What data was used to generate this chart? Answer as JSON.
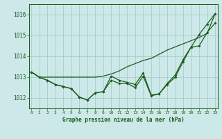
{
  "title": "Graphe pression niveau de la mer (hPa)",
  "background_color": "#cce8e8",
  "grid_color": "#aacccc",
  "line_color": "#1a5c1a",
  "x_ticks": [
    0,
    1,
    2,
    3,
    4,
    5,
    6,
    7,
    8,
    9,
    10,
    11,
    12,
    13,
    14,
    15,
    16,
    17,
    18,
    19,
    20,
    21,
    22,
    23
  ],
  "ylim": [
    1011.5,
    1016.5
  ],
  "yticks": [
    1012,
    1013,
    1014,
    1015,
    1016
  ],
  "line_top": [
    1013.25,
    1013.0,
    1013.0,
    1013.0,
    1013.0,
    1013.0,
    1013.0,
    1013.0,
    1013.0,
    1013.05,
    1013.15,
    1013.3,
    1013.5,
    1013.65,
    1013.8,
    1013.9,
    1014.1,
    1014.3,
    1014.45,
    1014.6,
    1014.75,
    1014.9,
    1015.1,
    1016.05
  ],
  "line_mid": [
    1013.25,
    1013.0,
    1012.85,
    1012.65,
    1012.55,
    1012.45,
    1012.05,
    1011.9,
    1012.25,
    1012.3,
    1013.05,
    1012.85,
    1012.75,
    1012.65,
    1013.2,
    1012.15,
    1012.2,
    1012.7,
    1013.1,
    1013.85,
    1014.45,
    1015.05,
    1015.55,
    1016.05
  ],
  "line_bot": [
    1013.25,
    1013.0,
    1012.85,
    1012.65,
    1012.55,
    1012.45,
    1012.05,
    1011.9,
    1012.25,
    1012.3,
    1012.85,
    1012.7,
    1012.7,
    1012.5,
    1013.05,
    1012.1,
    1012.2,
    1012.65,
    1013.0,
    1013.75,
    1014.45,
    1014.5,
    1015.15,
    1015.6
  ]
}
